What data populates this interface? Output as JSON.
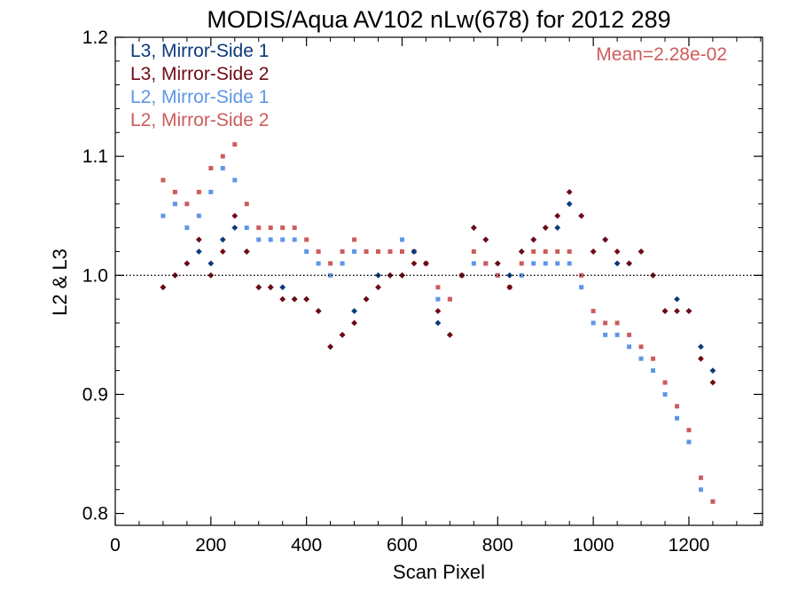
{
  "chart_data": {
    "type": "scatter",
    "title": "MODIS/Aqua AV102 nLw(678) for 2012 289",
    "xlabel": "Scan Pixel",
    "ylabel": "L2 & L3",
    "xlim": [
      0,
      1354
    ],
    "ylim": [
      0.79,
      1.2
    ],
    "x_ticks": [
      0,
      200,
      400,
      600,
      800,
      1000,
      1200
    ],
    "y_ticks": [
      0.8,
      0.9,
      1.0,
      1.1,
      1.2
    ],
    "x_tick_labels": [
      "0",
      "200",
      "400",
      "600",
      "800",
      "1000",
      "1200"
    ],
    "y_tick_labels": [
      "0.8",
      "0.9",
      "1.0",
      "1.1",
      "1.2"
    ],
    "reference_line": 1.0,
    "annotation": "Mean=2.28e-02",
    "legend_position": "top-left",
    "grid": false,
    "series": [
      {
        "name": "L3, Mirror-Side 1",
        "color": "#0b3a7a",
        "marker": "diamond",
        "x": [
          100,
          125,
          150,
          175,
          200,
          225,
          250,
          275,
          300,
          325,
          350,
          375,
          400,
          425,
          450,
          475,
          500,
          525,
          550,
          575,
          600,
          625,
          650,
          675,
          700,
          725,
          750,
          775,
          800,
          825,
          850,
          875,
          900,
          925,
          950,
          975,
          1000,
          1025,
          1050,
          1075,
          1100,
          1125,
          1150,
          1175,
          1200,
          1225,
          1250
        ],
        "y": [
          0.99,
          1.0,
          1.01,
          1.02,
          1.01,
          1.03,
          1.04,
          1.02,
          0.99,
          0.99,
          0.99,
          0.98,
          0.98,
          0.97,
          0.94,
          0.95,
          0.97,
          0.98,
          1.0,
          1.0,
          1.0,
          1.02,
          1.01,
          0.96,
          0.95,
          1.0,
          1.04,
          1.03,
          1.01,
          1.0,
          1.02,
          1.03,
          1.04,
          1.04,
          1.06,
          1.05,
          1.02,
          1.03,
          1.01,
          1.01,
          1.02,
          1.0,
          0.97,
          0.98,
          0.97,
          0.94,
          0.92
        ]
      },
      {
        "name": "L3, Mirror-Side 2",
        "color": "#6e0a14",
        "marker": "diamond",
        "x": [
          100,
          125,
          150,
          175,
          200,
          225,
          250,
          275,
          300,
          325,
          350,
          375,
          400,
          425,
          450,
          475,
          500,
          525,
          550,
          575,
          600,
          625,
          650,
          675,
          700,
          725,
          750,
          775,
          800,
          825,
          850,
          875,
          900,
          925,
          950,
          975,
          1000,
          1025,
          1050,
          1075,
          1100,
          1125,
          1150,
          1175,
          1200,
          1225,
          1250
        ],
        "y": [
          0.99,
          1.0,
          1.01,
          1.03,
          1.0,
          1.02,
          1.05,
          1.02,
          0.99,
          0.99,
          0.98,
          0.98,
          0.98,
          0.97,
          0.94,
          0.95,
          0.96,
          0.98,
          0.99,
          1.0,
          1.0,
          1.01,
          1.01,
          0.97,
          0.95,
          1.0,
          1.04,
          1.03,
          1.01,
          0.99,
          1.02,
          1.03,
          1.04,
          1.05,
          1.07,
          1.05,
          1.02,
          1.03,
          1.02,
          1.01,
          1.02,
          1.0,
          0.97,
          0.97,
          0.97,
          0.93,
          0.91
        ]
      },
      {
        "name": "L2, Mirror-Side 1",
        "color": "#5f96e6",
        "marker": "square",
        "x": [
          100,
          125,
          150,
          175,
          200,
          225,
          250,
          275,
          300,
          325,
          350,
          375,
          400,
          425,
          450,
          475,
          500,
          525,
          550,
          575,
          600,
          625,
          650,
          675,
          700,
          725,
          750,
          775,
          800,
          825,
          850,
          875,
          900,
          925,
          950,
          975,
          1000,
          1025,
          1050,
          1075,
          1100,
          1125,
          1150,
          1175,
          1200,
          1225,
          1250
        ],
        "y": [
          1.05,
          1.06,
          1.04,
          1.05,
          1.07,
          1.09,
          1.08,
          1.04,
          1.03,
          1.03,
          1.03,
          1.03,
          1.02,
          1.01,
          1.0,
          1.01,
          1.02,
          1.02,
          1.02,
          1.02,
          1.03,
          1.02,
          1.01,
          0.98,
          0.98,
          1.0,
          1.01,
          1.01,
          1.0,
          0.99,
          1.0,
          1.01,
          1.01,
          1.01,
          1.01,
          0.99,
          0.96,
          0.95,
          0.95,
          0.94,
          0.93,
          0.92,
          0.9,
          0.88,
          0.86,
          0.82,
          0.81
        ]
      },
      {
        "name": "L2, Mirror-Side 2",
        "color": "#cd5c5c",
        "marker": "square",
        "x": [
          100,
          125,
          150,
          175,
          200,
          225,
          250,
          275,
          300,
          325,
          350,
          375,
          400,
          425,
          450,
          475,
          500,
          525,
          550,
          575,
          600,
          625,
          650,
          675,
          700,
          725,
          750,
          775,
          800,
          825,
          850,
          875,
          900,
          925,
          950,
          975,
          1000,
          1025,
          1050,
          1075,
          1100,
          1125,
          1150,
          1175,
          1200,
          1225,
          1250
        ],
        "y": [
          1.08,
          1.07,
          1.06,
          1.07,
          1.09,
          1.1,
          1.11,
          1.06,
          1.04,
          1.04,
          1.04,
          1.04,
          1.03,
          1.02,
          1.01,
          1.02,
          1.03,
          1.02,
          1.02,
          1.02,
          1.02,
          1.02,
          1.01,
          0.99,
          0.98,
          1.0,
          1.02,
          1.01,
          1.0,
          0.99,
          1.01,
          1.02,
          1.02,
          1.02,
          1.02,
          1.0,
          0.97,
          0.96,
          0.96,
          0.95,
          0.94,
          0.93,
          0.91,
          0.89,
          0.87,
          0.83,
          0.81
        ]
      }
    ]
  }
}
